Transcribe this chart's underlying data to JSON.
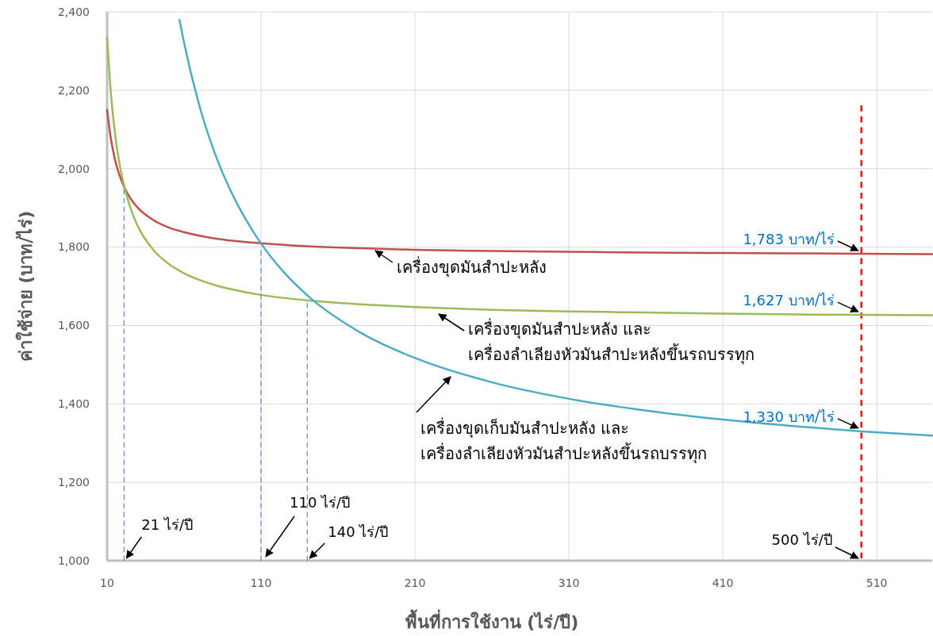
{
  "chart_data": {
    "type": "line",
    "xlabel": "พื้นที่การใช้งาน (ไร่/ปี)",
    "ylabel": "ค่าใช้จ่าย (บาท/ไร่)",
    "xlim": [
      10,
      546
    ],
    "xticks": [
      10,
      110,
      210,
      310,
      410,
      510
    ],
    "ylim": [
      1000,
      2400
    ],
    "yticks": [
      {
        "value": 1000,
        "label": "1,000"
      },
      {
        "value": 1200,
        "label": "1,200"
      },
      {
        "value": 1400,
        "label": "1,400"
      },
      {
        "value": 1600,
        "label": "1,600"
      },
      {
        "value": 1800,
        "label": "1,800"
      },
      {
        "value": 2000,
        "label": "2,000"
      },
      {
        "value": 2200,
        "label": "2,200"
      },
      {
        "value": 2400,
        "label": "2,400"
      }
    ],
    "grid": true,
    "marker": "none",
    "line_style": "solid",
    "series": [
      {
        "name": "เครื่องขุดมันสำปะหลัง",
        "color": "#c0504d",
        "x": [
          10,
          12,
          15,
          18,
          21,
          25,
          30,
          40,
          50,
          60,
          80,
          100,
          110,
          140,
          175,
          210,
          260,
          310,
          360,
          410,
          460,
          500,
          546
        ],
        "values": [
          2150,
          2088,
          2025,
          1984,
          1954,
          1925,
          1900,
          1869,
          1850,
          1838,
          1822,
          1813,
          1810,
          1802,
          1797,
          1793,
          1790,
          1788,
          1786,
          1785,
          1784,
          1783,
          1782
        ],
        "value_labels": [
          null,
          null,
          null,
          null,
          null,
          null,
          null,
          null,
          null,
          null,
          null,
          null,
          null,
          null,
          null,
          null,
          null,
          null,
          null,
          null,
          null,
          "1,783 บาท/ไร่",
          null
        ]
      },
      {
        "name": "เครื่องขุดมันสำปะหลัง และ\nเครื่องลำเลียงหัวมันสำปะหลังขึ้นรถบรรทุก",
        "color": "#9bbb59",
        "x": [
          10,
          12,
          15,
          18,
          21,
          25,
          30,
          40,
          50,
          60,
          80,
          100,
          110,
          140,
          175,
          210,
          260,
          310,
          360,
          410,
          460,
          500,
          546
        ],
        "values": [
          2335,
          2215,
          2094,
          2014,
          1957,
          1902,
          1853,
          1793,
          1757,
          1733,
          1703,
          1685,
          1678,
          1664,
          1654,
          1647,
          1640,
          1636,
          1633,
          1630,
          1628,
          1627,
          1626
        ],
        "value_labels": [
          null,
          null,
          null,
          null,
          null,
          null,
          null,
          null,
          null,
          null,
          null,
          null,
          null,
          null,
          null,
          null,
          null,
          null,
          null,
          null,
          null,
          "1,627 บาท/ไร่",
          null
        ]
      },
      {
        "name": "เครื่องขุดเก็บมันสำปะหลัง และ\nเครื่องลำเลียงหัวมันสำปะหลังขึ้นรถบรรทุก",
        "color": "#4bacc6",
        "x": [
          57,
          60,
          70,
          80,
          90,
          100,
          110,
          125,
          140,
          175,
          210,
          260,
          310,
          360,
          410,
          460,
          500,
          546
        ],
        "values": [
          2380,
          2321,
          2160,
          2039,
          1946,
          1871,
          1809,
          1735,
          1677,
          1581,
          1517,
          1455,
          1413,
          1383,
          1360,
          1342,
          1330,
          1319
        ],
        "value_labels": [
          null,
          null,
          null,
          null,
          null,
          null,
          null,
          null,
          null,
          null,
          null,
          null,
          null,
          null,
          null,
          null,
          "1,330 บาท/ไร่",
          null
        ]
      },
      {
        "color": "#4472c4",
        "line_style": "dashed",
        "x": [
          21,
          21
        ],
        "values": [
          1000,
          1950
        ]
      },
      {
        "color": "#4472c4",
        "line_style": "dashed",
        "x": [
          110,
          110
        ],
        "values": [
          1000,
          1800
        ]
      },
      {
        "color": "#4472c4",
        "line_style": "dashed",
        "x": [
          140,
          140
        ],
        "values": [
          1000,
          1664
        ]
      }
    ],
    "ref_lines": [
      {
        "axis": "x",
        "value": 500,
        "label": "500 ไร่/ปี",
        "color": "#ff0000",
        "line_style": "dashed"
      }
    ],
    "annotations": [
      {
        "text": "21 ไร่/ปี",
        "x": 21,
        "y": 1000
      },
      {
        "text": "110 ไร่/ปี",
        "x": 110,
        "y": 1000
      },
      {
        "text": "140 ไร่/ปี",
        "x": 140,
        "y": 1000
      }
    ]
  }
}
